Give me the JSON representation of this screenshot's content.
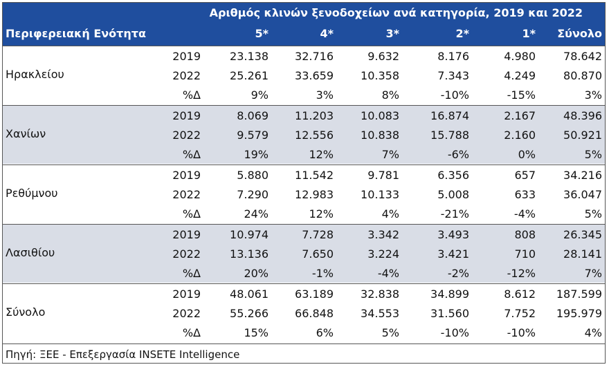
{
  "title": "Αριθμός κλινών ξενοδοχείων ανά κατηγορία, 2019 και 2022",
  "columns": {
    "region": "Περιφερειακή Ενότητα",
    "c5": "5*",
    "c4": "4*",
    "c3": "3*",
    "c2": "2*",
    "c1": "1*",
    "total": "Σύνολο"
  },
  "groups": [
    {
      "name": "Ηρακλείου",
      "rows": [
        {
          "label": "2019",
          "values": [
            "23.138",
            "32.716",
            "9.632",
            "8.176",
            "4.980",
            "78.642"
          ]
        },
        {
          "label": "2022",
          "values": [
            "25.261",
            "33.659",
            "10.358",
            "7.343",
            "4.249",
            "80.870"
          ]
        },
        {
          "label": "%Δ",
          "values": [
            "9%",
            "3%",
            "8%",
            "-10%",
            "-15%",
            "3%"
          ]
        }
      ]
    },
    {
      "name": "Χανίων",
      "rows": [
        {
          "label": "2019",
          "values": [
            "8.069",
            "11.203",
            "10.083",
            "16.874",
            "2.167",
            "48.396"
          ]
        },
        {
          "label": "2022",
          "values": [
            "9.579",
            "12.556",
            "10.838",
            "15.788",
            "2.160",
            "50.921"
          ]
        },
        {
          "label": "%Δ",
          "values": [
            "19%",
            "12%",
            "7%",
            "-6%",
            "0%",
            "5%"
          ]
        }
      ]
    },
    {
      "name": "Ρεθύμνου",
      "rows": [
        {
          "label": "2019",
          "values": [
            "5.880",
            "11.542",
            "9.781",
            "6.356",
            "657",
            "34.216"
          ]
        },
        {
          "label": "2022",
          "values": [
            "7.290",
            "12.983",
            "10.133",
            "5.008",
            "633",
            "36.047"
          ]
        },
        {
          "label": "%Δ",
          "values": [
            "24%",
            "12%",
            "4%",
            "-21%",
            "-4%",
            "5%"
          ]
        }
      ]
    },
    {
      "name": "Λασιθίου",
      "rows": [
        {
          "label": "2019",
          "values": [
            "10.974",
            "7.728",
            "3.342",
            "3.493",
            "808",
            "26.345"
          ]
        },
        {
          "label": "2022",
          "values": [
            "13.136",
            "7.650",
            "3.224",
            "3.421",
            "710",
            "28.141"
          ]
        },
        {
          "label": "%Δ",
          "values": [
            "20%",
            "-1%",
            "-4%",
            "-2%",
            "-12%",
            "7%"
          ]
        }
      ]
    },
    {
      "name": "Σύνολο",
      "rows": [
        {
          "label": "2019",
          "values": [
            "48.061",
            "63.189",
            "32.838",
            "34.899",
            "8.612",
            "187.599"
          ]
        },
        {
          "label": "2022",
          "values": [
            "55.266",
            "66.848",
            "34.553",
            "31.560",
            "7.752",
            "195.979"
          ]
        },
        {
          "label": "%Δ",
          "values": [
            "15%",
            "6%",
            "5%",
            "-10%",
            "-10%",
            "4%"
          ]
        }
      ]
    }
  ],
  "source": "Πηγή: ΞΕΕ - Επεξεργασία INSETE Intelligence",
  "colors": {
    "header_bg": "#1f4e9e",
    "shaded_bg": "#d9dde6"
  }
}
